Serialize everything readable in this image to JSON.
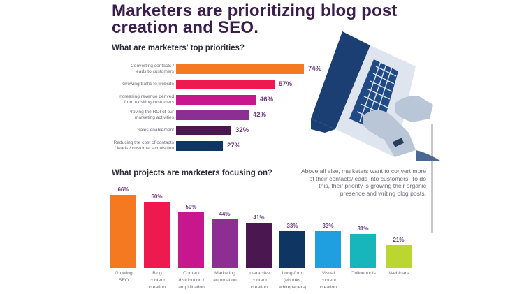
{
  "title": {
    "line1": "Marketers are prioritizing blog post",
    "line2": "creation and SEO."
  },
  "priorities": {
    "heading": "What are marketers' top priorities?",
    "items": [
      {
        "label_lines": [
          "Converting contacts /",
          "leads to customers"
        ],
        "value": 74,
        "value_label": "74%",
        "color": "#f47920"
      },
      {
        "label_lines": [
          "Growing traffic to website"
        ],
        "value": 57,
        "value_label": "57%",
        "color": "#ee1a4f"
      },
      {
        "label_lines": [
          "Increasing revenue derived",
          "from exisiting customers"
        ],
        "value": 46,
        "value_label": "46%",
        "color": "#c8168c"
      },
      {
        "label_lines": [
          "Proving the ROI of our",
          "marketing activities"
        ],
        "value": 42,
        "value_label": "42%",
        "color": "#8c2e92"
      },
      {
        "label_lines": [
          "Sales enablement"
        ],
        "value": 32,
        "value_label": "32%",
        "color": "#4a1750"
      },
      {
        "label_lines": [
          "Reducing the cost of contacts",
          "/ leads / customer acquisition"
        ],
        "value": 27,
        "value_label": "27%",
        "color": "#0f3563"
      }
    ]
  },
  "projects": {
    "heading": "What projects are marketers focusing on?",
    "items": [
      {
        "label_lines": [
          "Growing",
          "SEO"
        ],
        "value": 66,
        "value_label": "66%",
        "color": "#f47920"
      },
      {
        "label_lines": [
          "Blog",
          "content",
          "creation"
        ],
        "value": 60,
        "value_label": "60%",
        "color": "#ee1a4f"
      },
      {
        "label_lines": [
          "Content",
          "distribution /",
          "amplification"
        ],
        "value": 50,
        "value_label": "50%",
        "color": "#c8168c"
      },
      {
        "label_lines": [
          "Marketing",
          "automation"
        ],
        "value": 44,
        "value_label": "44%",
        "color": "#8c2e92"
      },
      {
        "label_lines": [
          "Interactive",
          "content",
          "creation"
        ],
        "value": 41,
        "value_label": "41%",
        "color": "#4a1750"
      },
      {
        "label_lines": [
          "Long-form",
          "(ebooks,",
          "whitepapers)"
        ],
        "value": 33,
        "value_label": "33%",
        "color": "#0f3563"
      },
      {
        "label_lines": [
          "Visual",
          "content",
          "creation"
        ],
        "value": 33,
        "value_label": "33%",
        "color": "#1f9ee0"
      },
      {
        "label_lines": [
          "Online tools"
        ],
        "value": 31,
        "value_label": "31%",
        "color": "#17b5bc"
      },
      {
        "label_lines": [
          "Webinars"
        ],
        "value": 21,
        "value_label": "21%",
        "color": "#bcd631"
      }
    ]
  },
  "note": {
    "text": "Above all else, marketers want to convert more of their contacts/leads into customers. To do this, their priority is growing their organic presence and writing blog posts."
  },
  "illustration": {
    "icon": "laptop-typing-hands-illustration",
    "color": "#1b3f73"
  },
  "chart_data": [
    {
      "type": "bar",
      "orientation": "horizontal",
      "title": "What are marketers' top priorities?",
      "categories": [
        "Converting contacts / leads to customers",
        "Growing traffic to website",
        "Increasing revenue derived from exisiting customers",
        "Proving the ROI of our marketing activities",
        "Sales enablement",
        "Reducing the cost of contacts / leads / customer acquisition"
      ],
      "values": [
        74,
        57,
        46,
        42,
        32,
        27
      ],
      "unit": "%",
      "xlabel": "",
      "ylabel": "",
      "grid": false,
      "legend": "none"
    },
    {
      "type": "bar",
      "orientation": "vertical",
      "title": "What projects are marketers focusing on?",
      "categories": [
        "Growing SEO",
        "Blog content creation",
        "Content distribution / amplification",
        "Marketing automation",
        "Interactive content creation",
        "Long-form (ebooks, whitepapers)",
        "Visual content creation",
        "Online tools",
        "Webinars"
      ],
      "values": [
        66,
        60,
        50,
        44,
        41,
        33,
        33,
        31,
        21
      ],
      "unit": "%",
      "xlabel": "",
      "ylabel": "",
      "grid": false,
      "legend": "none"
    }
  ]
}
